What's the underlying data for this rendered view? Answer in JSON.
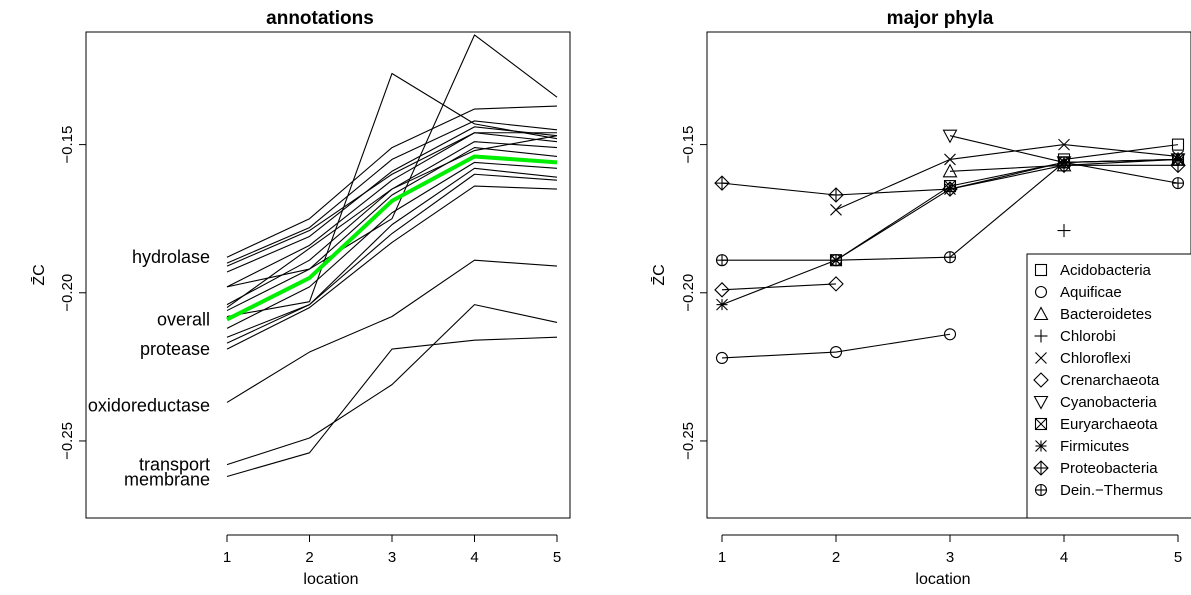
{
  "chart_data": [
    {
      "type": "line",
      "title": "annotations",
      "xlabel": "location",
      "ylabel": "Z̄C",
      "x": [
        1,
        2,
        3,
        4,
        5
      ],
      "xlim": [
        0.3,
        5.3
      ],
      "ylim": [
        -0.276,
        -0.112
      ],
      "yticks": [
        -0.15,
        -0.2,
        -0.25
      ],
      "ytick_labels": [
        "−0.15",
        "−0.20",
        "−0.25"
      ],
      "xtick_labels": [
        "1",
        "2",
        "3",
        "4",
        "5"
      ],
      "highlight_color": "#00ee00",
      "line_color": "#000000",
      "series": [
        {
          "name": "hydrolase",
          "values": [
            -0.191,
            -0.179,
            -0.16,
            -0.146,
            -0.146
          ],
          "label_y": -0.188
        },
        {
          "name": "overall",
          "highlight": true,
          "values": [
            -0.209,
            -0.195,
            -0.169,
            -0.154,
            -0.156
          ],
          "label_y": -0.209
        },
        {
          "name": "protease",
          "values": [
            -0.217,
            -0.204,
            -0.177,
            -0.158,
            -0.161
          ],
          "label_y": -0.219
        },
        {
          "name": "oxidoreductase",
          "values": [
            -0.237,
            -0.22,
            -0.208,
            -0.189,
            -0.191
          ],
          "label_y": -0.238
        },
        {
          "name": "transport",
          "values": [
            -0.258,
            -0.249,
            -0.231,
            -0.204,
            -0.21
          ],
          "label_y": -0.258
        },
        {
          "name": "membrane",
          "values": [
            -0.262,
            -0.254,
            -0.219,
            -0.216,
            -0.215
          ],
          "label_y": -0.263
        },
        {
          "values": [
            -0.188,
            -0.175,
            -0.151,
            -0.138,
            -0.137
          ]
        },
        {
          "values": [
            -0.19,
            -0.178,
            -0.155,
            -0.142,
            -0.145
          ]
        },
        {
          "values": [
            -0.193,
            -0.181,
            -0.159,
            -0.144,
            -0.147
          ]
        },
        {
          "values": [
            -0.198,
            -0.184,
            -0.162,
            -0.146,
            -0.149
          ]
        },
        {
          "values": [
            -0.204,
            -0.189,
            -0.165,
            -0.149,
            -0.151
          ]
        },
        {
          "values": [
            -0.206,
            -0.192,
            -0.167,
            -0.151,
            -0.154
          ]
        },
        {
          "values": [
            -0.212,
            -0.198,
            -0.173,
            -0.156,
            -0.158
          ]
        },
        {
          "values": [
            -0.215,
            -0.204,
            -0.18,
            -0.16,
            -0.162
          ]
        },
        {
          "values": [
            -0.219,
            -0.205,
            -0.183,
            -0.164,
            -0.165
          ]
        },
        {
          "values": [
            -0.198,
            -0.192,
            -0.175,
            -0.113,
            -0.134
          ]
        },
        {
          "values": [
            -0.208,
            -0.203,
            -0.126,
            -0.143,
            -0.148
          ]
        },
        {
          "values": [
            -0.205,
            -0.185,
            -0.165,
            -0.152,
            -0.147
          ]
        }
      ]
    },
    {
      "type": "scatter",
      "title": "major phyla",
      "xlabel": "location",
      "ylabel": "Z̄C",
      "xlim": [
        0.85,
        5.1
      ],
      "ylim": [
        -0.276,
        -0.112
      ],
      "yticks": [
        -0.15,
        -0.2,
        -0.25
      ],
      "ytick_labels": [
        "−0.15",
        "−0.20",
        "−0.25"
      ],
      "xtick_labels": [
        "1",
        "2",
        "3",
        "4",
        "5"
      ],
      "legend_position": "right",
      "series": [
        {
          "name": "Acidobacteria",
          "marker": "square",
          "x": [
            4,
            5
          ],
          "values": [
            -0.155,
            -0.15
          ]
        },
        {
          "name": "Aquificae",
          "marker": "circle",
          "x": [
            1,
            2,
            3
          ],
          "values": [
            -0.222,
            -0.22,
            -0.214
          ]
        },
        {
          "name": "Bacteroidetes",
          "marker": "triangle-up",
          "x": [
            3,
            4,
            5
          ],
          "values": [
            -0.159,
            -0.157,
            -0.155
          ]
        },
        {
          "name": "Chlorobi",
          "marker": "plus",
          "x": [
            4
          ],
          "values": [
            -0.179
          ]
        },
        {
          "name": "Chloroflexi",
          "marker": "cross",
          "x": [
            2,
            3,
            4,
            5
          ],
          "values": [
            -0.172,
            -0.155,
            -0.15,
            -0.154
          ]
        },
        {
          "name": "Crenarchaeota",
          "marker": "diamond",
          "x": [
            1,
            2
          ],
          "values": [
            -0.199,
            -0.197
          ]
        },
        {
          "name": "Cyanobacteria",
          "marker": "triangle-down",
          "x": [
            3,
            4,
            5
          ],
          "values": [
            -0.147,
            -0.156,
            -0.155
          ]
        },
        {
          "name": "Euryarchaeota",
          "marker": "square-x",
          "x": [
            2,
            3,
            4,
            5
          ],
          "values": [
            -0.189,
            -0.164,
            -0.156,
            -0.155
          ]
        },
        {
          "name": "Firmicutes",
          "marker": "asterisk",
          "x": [
            1,
            2,
            3,
            4,
            5
          ],
          "values": [
            -0.204,
            -0.189,
            -0.165,
            -0.156,
            -0.155
          ]
        },
        {
          "name": "Proteobacteria",
          "marker": "diamond-plus",
          "x": [
            1,
            2,
            3,
            4,
            5
          ],
          "values": [
            -0.163,
            -0.167,
            -0.165,
            -0.157,
            -0.157
          ]
        },
        {
          "name": "Dein.−Thermus",
          "marker": "circle-plus",
          "x": [
            1,
            2,
            3,
            4,
            5
          ],
          "values": [
            -0.189,
            -0.189,
            -0.188,
            -0.156,
            -0.163
          ]
        }
      ]
    }
  ]
}
